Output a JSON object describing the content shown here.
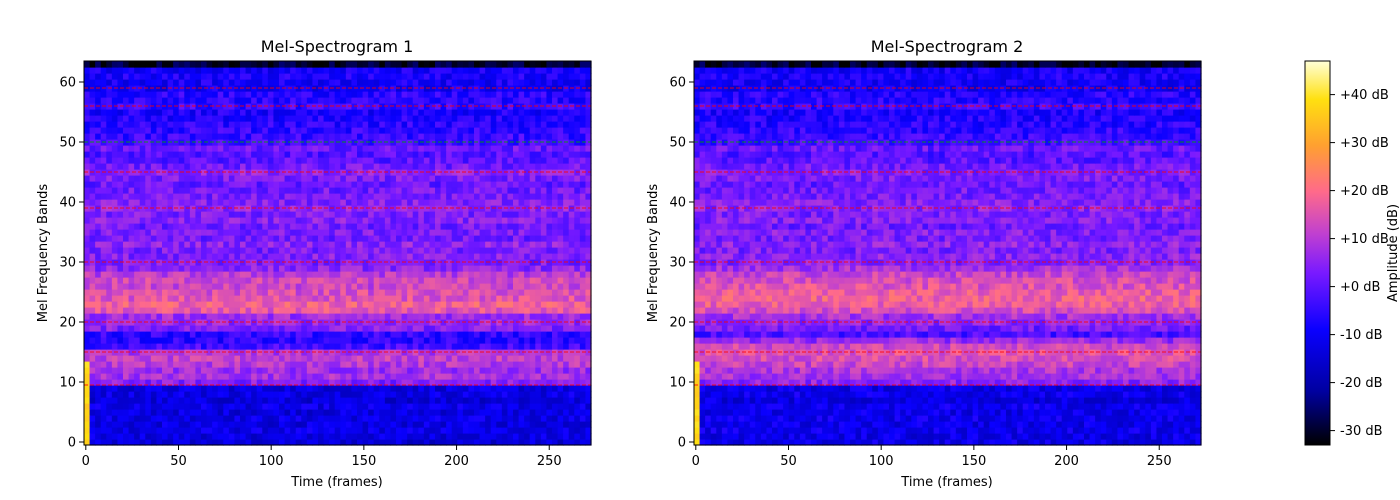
{
  "chart_data": [
    {
      "type": "heatmap",
      "title": "Mel-Spectrogram 1",
      "xlabel": "Time (frames)",
      "ylabel": "Mel Frequency Bands",
      "xlim": [
        0,
        273
      ],
      "ylim": [
        0,
        63
      ],
      "xticks": [
        0,
        50,
        100,
        150,
        200,
        250
      ],
      "yticks": [
        0,
        10,
        20,
        30,
        40,
        50,
        60
      ],
      "colormap": "gnuplot2",
      "band_profile_db": [
        -14,
        -13,
        -12,
        -13,
        -12,
        -13,
        -12,
        -14,
        -12,
        -13,
        4,
        8,
        7,
        10,
        11,
        9,
        -3,
        -6,
        -5,
        4,
        6,
        7,
        16,
        18,
        15,
        14,
        12,
        13,
        10,
        5,
        3,
        4,
        3,
        5,
        2,
        3,
        2,
        4,
        3,
        5,
        4,
        3,
        2,
        1,
        3,
        5,
        2,
        0,
        -1,
        1,
        -3,
        -4,
        -5,
        -6,
        -7,
        -8,
        -4,
        -6,
        -6,
        -10,
        -9,
        -8,
        -9,
        -30
      ],
      "highlight_lines": [
        {
          "band": 9.5,
          "color": "#ff0000"
        },
        {
          "band": 15,
          "color": "#ff0000"
        },
        {
          "band": 20,
          "color": "#ff0000"
        },
        {
          "band": 30,
          "color": "#ff0000"
        },
        {
          "band": 39,
          "color": "#ff0000"
        },
        {
          "band": 45,
          "color": "#ff0000"
        },
        {
          "band": 50,
          "color": "#00a000"
        },
        {
          "band": 56,
          "color": "#ff0000"
        },
        {
          "band": 59,
          "color": "#ff0000"
        }
      ]
    },
    {
      "type": "heatmap",
      "title": "Mel-Spectrogram 2",
      "xlabel": "Time (frames)",
      "ylabel": "Mel Frequency Bands",
      "xlim": [
        0,
        273
      ],
      "ylim": [
        0,
        63
      ],
      "xticks": [
        0,
        50,
        100,
        150,
        200,
        250
      ],
      "yticks": [
        0,
        10,
        20,
        30,
        40,
        50,
        60
      ],
      "colormap": "gnuplot2",
      "band_profile_db": [
        -12,
        -12,
        -11,
        -12,
        -11,
        -12,
        -11,
        -13,
        -11,
        -12,
        5,
        8,
        9,
        12,
        14,
        15,
        13,
        6,
        -2,
        2,
        5,
        8,
        14,
        17,
        18,
        17,
        15,
        14,
        12,
        8,
        4,
        5,
        3,
        5,
        3,
        4,
        2,
        4,
        3,
        5,
        4,
        3,
        2,
        1,
        3,
        4,
        2,
        0,
        -1,
        1,
        -3,
        -4,
        -5,
        -6,
        -7,
        -8,
        -4,
        -6,
        -6,
        -10,
        -9,
        -8,
        -9,
        -30
      ],
      "highlight_lines": [
        {
          "band": 9.5,
          "color": "#ff0000"
        },
        {
          "band": 15,
          "color": "#ff0000"
        },
        {
          "band": 20,
          "color": "#ff0000"
        },
        {
          "band": 30,
          "color": "#ff0000"
        },
        {
          "band": 39,
          "color": "#ff0000"
        },
        {
          "band": 45,
          "color": "#ff0000"
        },
        {
          "band": 50,
          "color": "#00a000"
        },
        {
          "band": 56,
          "color": "#ff0000"
        },
        {
          "band": 59,
          "color": "#ff0000"
        }
      ]
    }
  ],
  "colorbar": {
    "label": "Amplitude (dB)",
    "range": [
      -33,
      47
    ],
    "tick_values": [
      -30,
      -20,
      -10,
      0,
      10,
      20,
      30,
      40
    ],
    "tick_labels": [
      "-30 dB",
      "-20 dB",
      "-10 dB",
      "+0 dB",
      "+10 dB",
      "+20 dB",
      "+30 dB",
      "+40 dB"
    ]
  }
}
